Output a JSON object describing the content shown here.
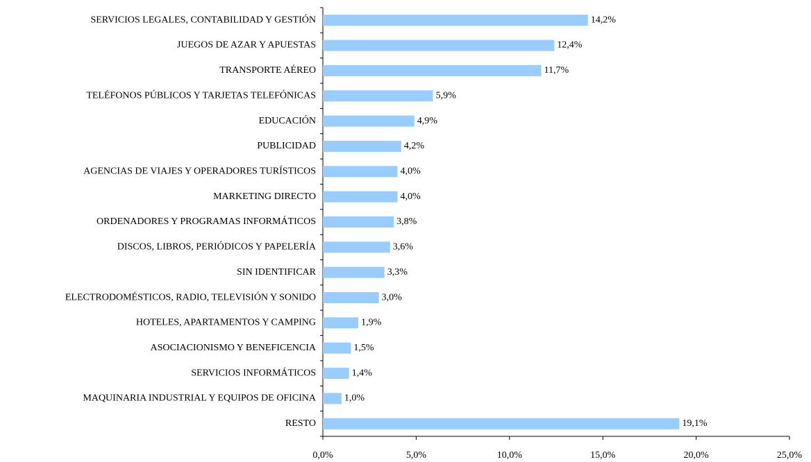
{
  "chart_data": {
    "type": "barh",
    "categories": [
      "SERVICIOS LEGALES, CONTABILIDAD Y GESTIÓN",
      "JUEGOS DE AZAR Y APUESTAS",
      "TRANSPORTE AÉREO",
      "TELÉFONOS PÚBLICOS Y TARJETAS TELEFÓNICAS",
      "EDUCACIÓN",
      "PUBLICIDAD",
      "AGENCIAS DE VIAJES Y OPERADORES TURÍSTICOS",
      "MARKETING DIRECTO",
      "ORDENADORES Y PROGRAMAS INFORMÁTICOS",
      "DISCOS, LIBROS, PERIÓDICOS Y PAPELERÍA",
      "SIN IDENTIFICAR",
      "ELECTRODOMÉSTICOS, RADIO, TELEVISIÓN Y SONIDO",
      "HOTELES, APARTAMENTOS Y CAMPING",
      "ASOCIACIONISMO Y BENEFICENCIA",
      "SERVICIOS INFORMÁTICOS",
      "MAQUINARIA INDUSTRIAL Y EQUIPOS DE OFICINA",
      "RESTO"
    ],
    "values": [
      14.2,
      12.4,
      11.7,
      5.9,
      4.9,
      4.2,
      4.0,
      4.0,
      3.8,
      3.6,
      3.3,
      3.0,
      1.9,
      1.5,
      1.4,
      1.0,
      19.1
    ],
    "value_labels": [
      "14,2%",
      "12,4%",
      "11,7%",
      "5,9%",
      "4,9%",
      "4,2%",
      "4,0%",
      "4,0%",
      "3,8%",
      "3,6%",
      "3,3%",
      "3,0%",
      "1,9%",
      "1,5%",
      "1,4%",
      "1,0%",
      "19,1%"
    ],
    "color": "#99ccff",
    "xlim": [
      0,
      25
    ],
    "xticks": [
      {
        "value": 0,
        "label": "0,0%"
      },
      {
        "value": 5,
        "label": "5,0%"
      },
      {
        "value": 10,
        "label": "10,0%"
      },
      {
        "value": 15,
        "label": "15,0%"
      },
      {
        "value": 20,
        "label": "20,0%"
      },
      {
        "value": 25,
        "label": "25,0%"
      }
    ],
    "grid": false
  }
}
